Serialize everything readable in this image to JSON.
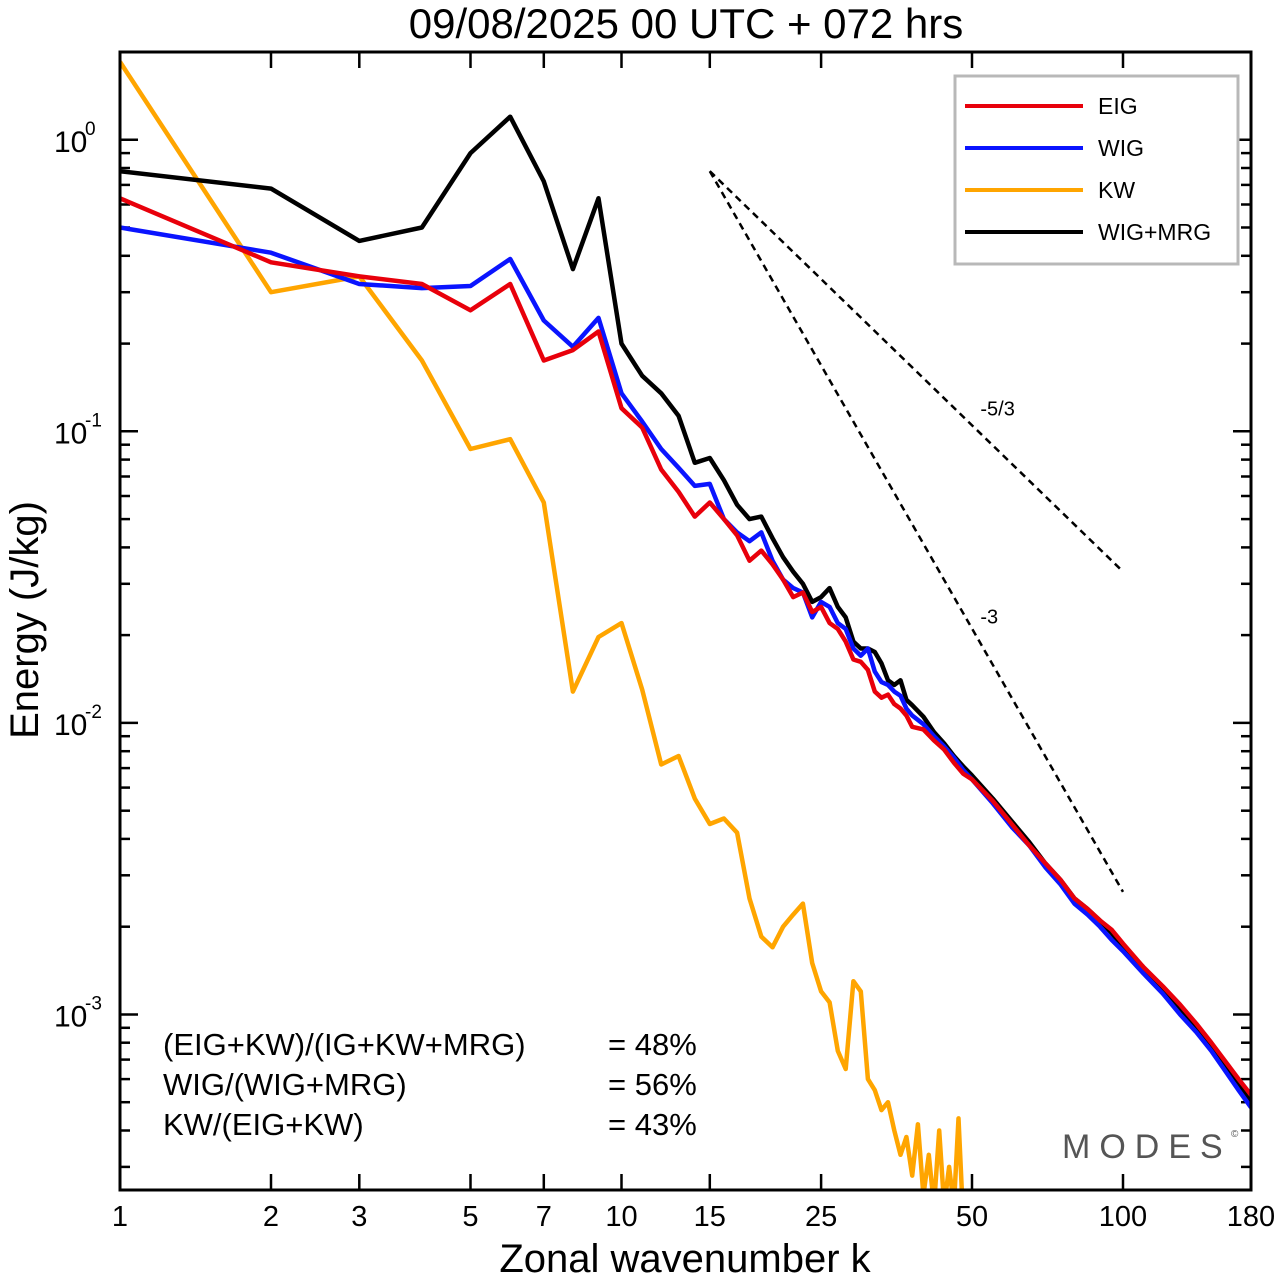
{
  "chart_data": {
    "type": "line",
    "title": "09/08/2025  00 UTC  + 072 hrs",
    "xlabel": "Zonal wavenumber k",
    "ylabel": "Energy (J/kg)",
    "xscale": "log",
    "yscale": "log",
    "xlim": [
      1,
      180
    ],
    "ylim": [
      0.00025,
      2.0
    ],
    "xticks": [
      1,
      2,
      3,
      5,
      7,
      10,
      15,
      25,
      50,
      100,
      180
    ],
    "xtick_labels": [
      "1",
      "2",
      "3",
      "5",
      "7",
      "10",
      "15",
      "25",
      "50",
      "100",
      "180"
    ],
    "yticks": [
      {
        "value": 1,
        "mantissa": "10",
        "exponent": "0"
      },
      {
        "value": 0.1,
        "mantissa": "10",
        "exponent": "-1"
      },
      {
        "value": 0.01,
        "mantissa": "10",
        "exponent": "-2"
      },
      {
        "value": 0.001,
        "mantissa": "10",
        "exponent": "-3"
      }
    ],
    "legend_position": "top-right",
    "series": [
      {
        "name": "EIG",
        "color": "#e8000b",
        "points": [
          [
            1,
            0.63
          ],
          [
            2,
            0.38
          ],
          [
            3,
            0.34
          ],
          [
            4,
            0.32
          ],
          [
            5,
            0.26
          ],
          [
            6,
            0.32
          ],
          [
            7,
            0.175
          ],
          [
            8,
            0.19
          ],
          [
            9,
            0.22
          ],
          [
            10,
            0.12
          ],
          [
            11,
            0.103
          ],
          [
            12,
            0.074
          ],
          [
            13,
            0.062
          ],
          [
            14,
            0.051
          ],
          [
            15,
            0.057
          ],
          [
            16,
            0.05
          ],
          [
            17,
            0.044
          ],
          [
            18,
            0.036
          ],
          [
            19,
            0.039
          ],
          [
            20,
            0.035
          ],
          [
            21,
            0.031
          ],
          [
            22,
            0.027
          ],
          [
            23,
            0.028
          ],
          [
            24,
            0.024
          ],
          [
            25,
            0.025
          ],
          [
            26,
            0.022
          ],
          [
            27,
            0.021
          ],
          [
            28,
            0.019
          ],
          [
            29,
            0.0165
          ],
          [
            30,
            0.0162
          ],
          [
            31,
            0.0152
          ],
          [
            32,
            0.0128
          ],
          [
            33,
            0.0122
          ],
          [
            34,
            0.0125
          ],
          [
            35,
            0.0116
          ],
          [
            36,
            0.0112
          ],
          [
            37,
            0.0106
          ],
          [
            38,
            0.0097
          ],
          [
            40,
            0.0095
          ],
          [
            42,
            0.0087
          ],
          [
            44,
            0.0081
          ],
          [
            46,
            0.0073
          ],
          [
            48,
            0.0067
          ],
          [
            50,
            0.0064
          ],
          [
            55,
            0.0054
          ],
          [
            60,
            0.0045
          ],
          [
            65,
            0.0038
          ],
          [
            70,
            0.0033
          ],
          [
            75,
            0.0029
          ],
          [
            80,
            0.0025
          ],
          [
            85,
            0.0023
          ],
          [
            90,
            0.0021
          ],
          [
            95,
            0.00195
          ],
          [
            100,
            0.00175
          ],
          [
            110,
            0.00145
          ],
          [
            120,
            0.00125
          ],
          [
            130,
            0.00108
          ],
          [
            140,
            0.00093
          ],
          [
            150,
            0.0008
          ],
          [
            160,
            0.00069
          ],
          [
            170,
            0.0006
          ],
          [
            180,
            0.00053
          ]
        ]
      },
      {
        "name": "WIG",
        "color": "#0a14ff",
        "points": [
          [
            1,
            0.5
          ],
          [
            2,
            0.41
          ],
          [
            3,
            0.32
          ],
          [
            4,
            0.31
          ],
          [
            5,
            0.315
          ],
          [
            6,
            0.39
          ],
          [
            7,
            0.24
          ],
          [
            8,
            0.195
          ],
          [
            9,
            0.245
          ],
          [
            10,
            0.135
          ],
          [
            11,
            0.108
          ],
          [
            12,
            0.087
          ],
          [
            13,
            0.075
          ],
          [
            14,
            0.065
          ],
          [
            15,
            0.066
          ],
          [
            16,
            0.05
          ],
          [
            17,
            0.045
          ],
          [
            18,
            0.042
          ],
          [
            19,
            0.045
          ],
          [
            20,
            0.036
          ],
          [
            21,
            0.031
          ],
          [
            22,
            0.029
          ],
          [
            23,
            0.028
          ],
          [
            24,
            0.023
          ],
          [
            25,
            0.026
          ],
          [
            26,
            0.025
          ],
          [
            27,
            0.022
          ],
          [
            28,
            0.021
          ],
          [
            29,
            0.018
          ],
          [
            30,
            0.017
          ],
          [
            31,
            0.018
          ],
          [
            32,
            0.015
          ],
          [
            33,
            0.0138
          ],
          [
            34,
            0.0135
          ],
          [
            35,
            0.0128
          ],
          [
            36,
            0.0124
          ],
          [
            37,
            0.0112
          ],
          [
            38,
            0.0106
          ],
          [
            40,
            0.0099
          ],
          [
            42,
            0.009
          ],
          [
            44,
            0.0083
          ],
          [
            46,
            0.0076
          ],
          [
            48,
            0.0069
          ],
          [
            50,
            0.0064
          ],
          [
            55,
            0.0053
          ],
          [
            60,
            0.0044
          ],
          [
            65,
            0.0038
          ],
          [
            70,
            0.0032
          ],
          [
            75,
            0.0028
          ],
          [
            80,
            0.0024
          ],
          [
            85,
            0.0022
          ],
          [
            90,
            0.002
          ],
          [
            95,
            0.0018
          ],
          [
            100,
            0.00165
          ],
          [
            110,
            0.00138
          ],
          [
            120,
            0.00118
          ],
          [
            130,
            0.001
          ],
          [
            140,
            0.00087
          ],
          [
            150,
            0.00075
          ],
          [
            160,
            0.00064
          ],
          [
            170,
            0.00055
          ],
          [
            180,
            0.00048
          ]
        ]
      },
      {
        "name": "KW",
        "color": "#ffa500",
        "points": [
          [
            1,
            1.85
          ],
          [
            2,
            0.3
          ],
          [
            3,
            0.34
          ],
          [
            4,
            0.175
          ],
          [
            5,
            0.087
          ],
          [
            6,
            0.094
          ],
          [
            7,
            0.057
          ],
          [
            8,
            0.0128
          ],
          [
            9,
            0.0197
          ],
          [
            10,
            0.022
          ],
          [
            11,
            0.013
          ],
          [
            12,
            0.0072
          ],
          [
            13,
            0.0077
          ],
          [
            14,
            0.0055
          ],
          [
            15,
            0.0045
          ],
          [
            16,
            0.0047
          ],
          [
            17,
            0.0042
          ],
          [
            18,
            0.0025
          ],
          [
            19,
            0.00185
          ],
          [
            20,
            0.0017
          ],
          [
            21,
            0.002
          ],
          [
            22,
            0.0022
          ],
          [
            23,
            0.0024
          ],
          [
            24,
            0.0015
          ],
          [
            25,
            0.0012
          ],
          [
            26,
            0.0011
          ],
          [
            27,
            0.00075
          ],
          [
            28,
            0.00065
          ],
          [
            29,
            0.0013
          ],
          [
            30,
            0.0012
          ],
          [
            31,
            0.0006
          ],
          [
            32,
            0.00055
          ],
          [
            33,
            0.00047
          ],
          [
            34,
            0.0005
          ],
          [
            35,
            0.0004
          ],
          [
            36,
            0.00033
          ],
          [
            37,
            0.00038
          ],
          [
            38,
            0.00028
          ],
          [
            39,
            0.00042
          ],
          [
            40,
            0.00024
          ],
          [
            41,
            0.00033
          ],
          [
            42,
            0.00022
          ],
          [
            43,
            0.0004
          ],
          [
            44,
            0.00022
          ],
          [
            45,
            0.0003
          ],
          [
            46,
            0.00022
          ],
          [
            47,
            0.00044
          ],
          [
            48,
            0.0002
          ]
        ]
      },
      {
        "name": "WIG+MRG",
        "color": "#000000",
        "points": [
          [
            1,
            0.78
          ],
          [
            2,
            0.68
          ],
          [
            3,
            0.45
          ],
          [
            4,
            0.5
          ],
          [
            5,
            0.9
          ],
          [
            6,
            1.2
          ],
          [
            7,
            0.72
          ],
          [
            8,
            0.36
          ],
          [
            9,
            0.63
          ],
          [
            10,
            0.2
          ],
          [
            11,
            0.155
          ],
          [
            12,
            0.135
          ],
          [
            13,
            0.113
          ],
          [
            14,
            0.078
          ],
          [
            15,
            0.081
          ],
          [
            16,
            0.068
          ],
          [
            17,
            0.056
          ],
          [
            18,
            0.05
          ],
          [
            19,
            0.051
          ],
          [
            20,
            0.043
          ],
          [
            21,
            0.037
          ],
          [
            22,
            0.033
          ],
          [
            23,
            0.03
          ],
          [
            24,
            0.026
          ],
          [
            25,
            0.027
          ],
          [
            26,
            0.029
          ],
          [
            27,
            0.025
          ],
          [
            28,
            0.023
          ],
          [
            29,
            0.019
          ],
          [
            30,
            0.018
          ],
          [
            31,
            0.018
          ],
          [
            32,
            0.0175
          ],
          [
            33,
            0.016
          ],
          [
            34,
            0.014
          ],
          [
            35,
            0.0135
          ],
          [
            36,
            0.014
          ],
          [
            37,
            0.012
          ],
          [
            38,
            0.0115
          ],
          [
            40,
            0.0105
          ],
          [
            42,
            0.0093
          ],
          [
            44,
            0.0085
          ],
          [
            46,
            0.0077
          ],
          [
            48,
            0.0071
          ],
          [
            50,
            0.0066
          ],
          [
            55,
            0.0055
          ],
          [
            60,
            0.0046
          ],
          [
            65,
            0.0039
          ],
          [
            70,
            0.0033
          ],
          [
            75,
            0.0029
          ],
          [
            80,
            0.0025
          ],
          [
            85,
            0.0023
          ],
          [
            90,
            0.0021
          ],
          [
            95,
            0.0019
          ],
          [
            100,
            0.0017
          ],
          [
            110,
            0.0014
          ],
          [
            120,
            0.0012
          ],
          [
            130,
            0.00103
          ],
          [
            140,
            0.00089
          ],
          [
            150,
            0.00077
          ],
          [
            160,
            0.00066
          ],
          [
            170,
            0.00057
          ],
          [
            180,
            0.0005
          ]
        ]
      }
    ],
    "reference_lines": [
      {
        "label": "-5/3",
        "slope": "-5/3",
        "k_start": 15,
        "k_end": 100,
        "e_start": 0.78
      },
      {
        "label": "-3",
        "slope": "-3",
        "k_start": 15,
        "k_end": 100,
        "e_start": 0.78
      }
    ],
    "annotations": [
      {
        "label": "(EIG+KW)/(IG+KW+MRG)",
        "value": "= 48%"
      },
      {
        "label": "WIG/(WIG+MRG)",
        "value": "= 56%"
      },
      {
        "label": "KW/(EIG+KW)",
        "value": "= 43%"
      }
    ],
    "watermark": "MODES",
    "watermark_mark": "©"
  }
}
